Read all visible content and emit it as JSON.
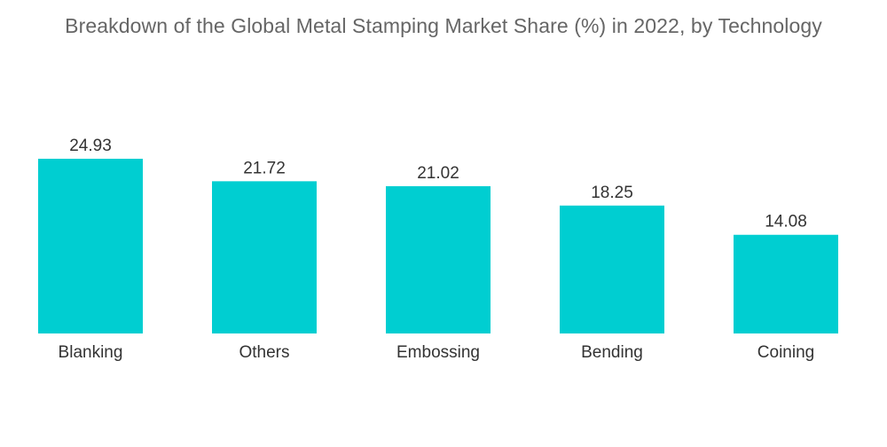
{
  "chart_data": {
    "type": "bar",
    "title": "Breakdown of the Global Metal Stamping Market Share (%) in 2022, by Technology",
    "categories": [
      "Blanking",
      "Others",
      "Embossing",
      "Bending",
      "Coining"
    ],
    "values": [
      24.93,
      21.72,
      21.02,
      18.25,
      14.08
    ],
    "value_labels": [
      "24.93",
      "21.72",
      "21.02",
      "18.25",
      "14.08"
    ],
    "xlabel": "",
    "ylabel": "",
    "ylim": [
      0,
      24.93
    ],
    "grid": false,
    "legend": "none",
    "bar_color": "#00CED1"
  }
}
